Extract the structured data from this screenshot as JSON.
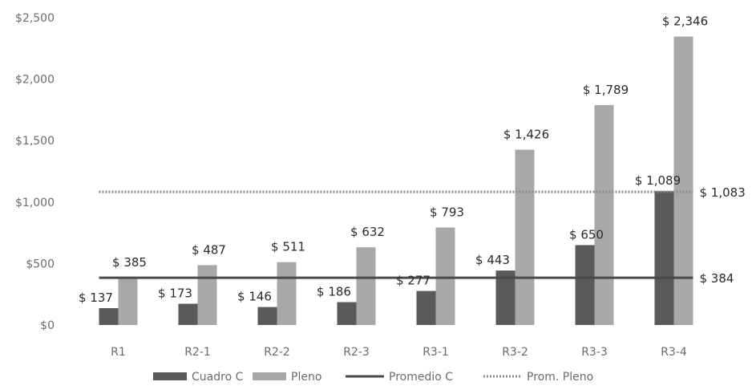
{
  "chart_data": {
    "type": "bar",
    "categories": [
      "R1",
      "R2-1",
      "R2-2",
      "R2-3",
      "R3-1",
      "R3-2",
      "R3-3",
      "R3-4"
    ],
    "series": [
      {
        "name": "Cuadro C",
        "values": [
          137,
          173,
          146,
          186,
          277,
          443,
          650,
          1089
        ],
        "labels": [
          "$ 137",
          "$ 173",
          "$ 146",
          "$ 186",
          "$ 277",
          "$ 443",
          "$ 650",
          "$ 1,089"
        ],
        "color": "#5a5a5a"
      },
      {
        "name": "Pleno",
        "values": [
          385,
          487,
          511,
          632,
          793,
          1426,
          1789,
          2346
        ],
        "labels": [
          "$ 385",
          "$ 487",
          "$ 511",
          "$ 632",
          "$ 793",
          "$ 1,426",
          "$ 1,789",
          "$ 2,346"
        ],
        "color": "#a8a8a8"
      }
    ],
    "lines": [
      {
        "name": "Promedio C",
        "value": 384,
        "label": "$ 384",
        "color": "#4a4a4a",
        "style": "solid"
      },
      {
        "name": "Prom. Pleno",
        "value": 1083,
        "label": "$ 1,083",
        "color": "#8a8a8a",
        "style": "dotted"
      }
    ],
    "yticks": [
      "$0",
      "$500",
      "$1,000",
      "$1,500",
      "$2,000",
      "$2,500"
    ],
    "ytick_values": [
      0,
      500,
      1000,
      1500,
      2000,
      2500
    ],
    "ylim": [
      0,
      2500
    ],
    "legend": [
      "Cuadro C",
      "Pleno",
      "Promedio C",
      "Prom. Pleno"
    ],
    "legend_position": "bottom",
    "grid": false
  }
}
